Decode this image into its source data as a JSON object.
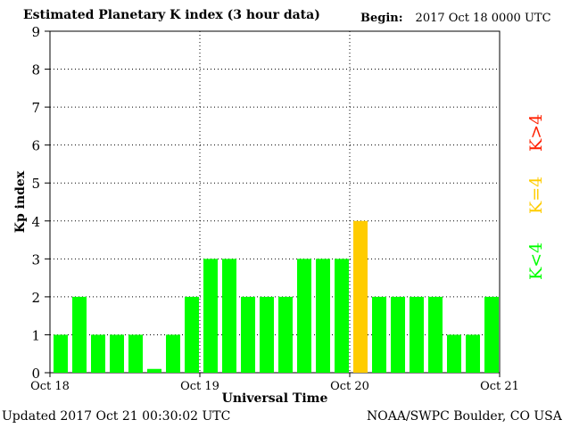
{
  "header": {
    "title": "Estimated Planetary K index (3 hour data)",
    "begin_label": "Begin:",
    "begin_value": "2017 Oct 18 0000 UTC"
  },
  "footer": {
    "updated": "Updated 2017 Oct 21 00:30:02 UTC",
    "credit": "NOAA/SWPC Boulder, CO USA"
  },
  "legend": {
    "below": "K<4",
    "equal": "K=4",
    "above": "K>4"
  },
  "colors": {
    "below": "#00ff00",
    "equal": "#ffcc00",
    "above": "#ff2000"
  },
  "chart_data": {
    "type": "bar",
    "title": "Estimated Planetary K index (3 hour data)",
    "xlabel": "Universal Time",
    "ylabel": "Kp index",
    "ylim": [
      0,
      9
    ],
    "yticks": [
      "0",
      "1",
      "2",
      "3",
      "4",
      "5",
      "6",
      "7",
      "8",
      "9"
    ],
    "xticks": [
      "Oct 18",
      "Oct 19",
      "Oct 20",
      "Oct 21"
    ],
    "grid": true,
    "legend_placement": "right",
    "values": [
      1,
      2,
      1,
      1,
      1,
      0.1,
      1,
      2,
      3,
      3,
      2,
      2,
      2,
      3,
      3,
      3,
      4,
      2,
      2,
      2,
      2,
      1,
      1,
      2
    ]
  }
}
